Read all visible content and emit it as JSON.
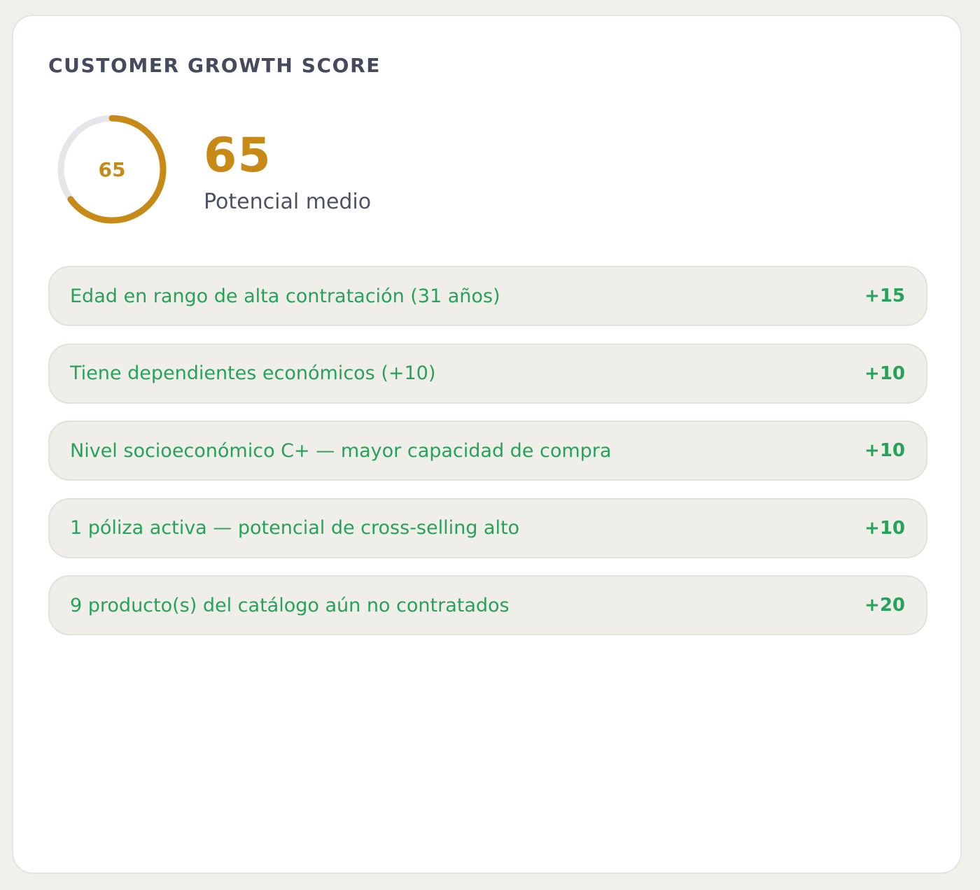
{
  "card": {
    "title": "CUSTOMER GROWTH SCORE"
  },
  "score": {
    "value": "65",
    "gauge_label": "65",
    "fraction": 0.65,
    "label": "Potencial medio"
  },
  "factors": [
    {
      "text": "Edad en rango de alta contratación (31 años)",
      "points": "+15"
    },
    {
      "text": "Tiene dependientes económicos (+10)",
      "points": "+10"
    },
    {
      "text": "Nivel socioeconómico C+ — mayor capacidad de compra",
      "points": "+10"
    },
    {
      "text": "1 póliza activa — potencial de cross-selling alto",
      "points": "+10"
    },
    {
      "text": "9 producto(s) del catálogo aún no contratados",
      "points": "+20"
    }
  ],
  "colors": {
    "accent_gold": "#c88a17",
    "positive_green": "#27a25a",
    "gauge_track": "#e5e5ea",
    "title_text": "#454a5c"
  }
}
